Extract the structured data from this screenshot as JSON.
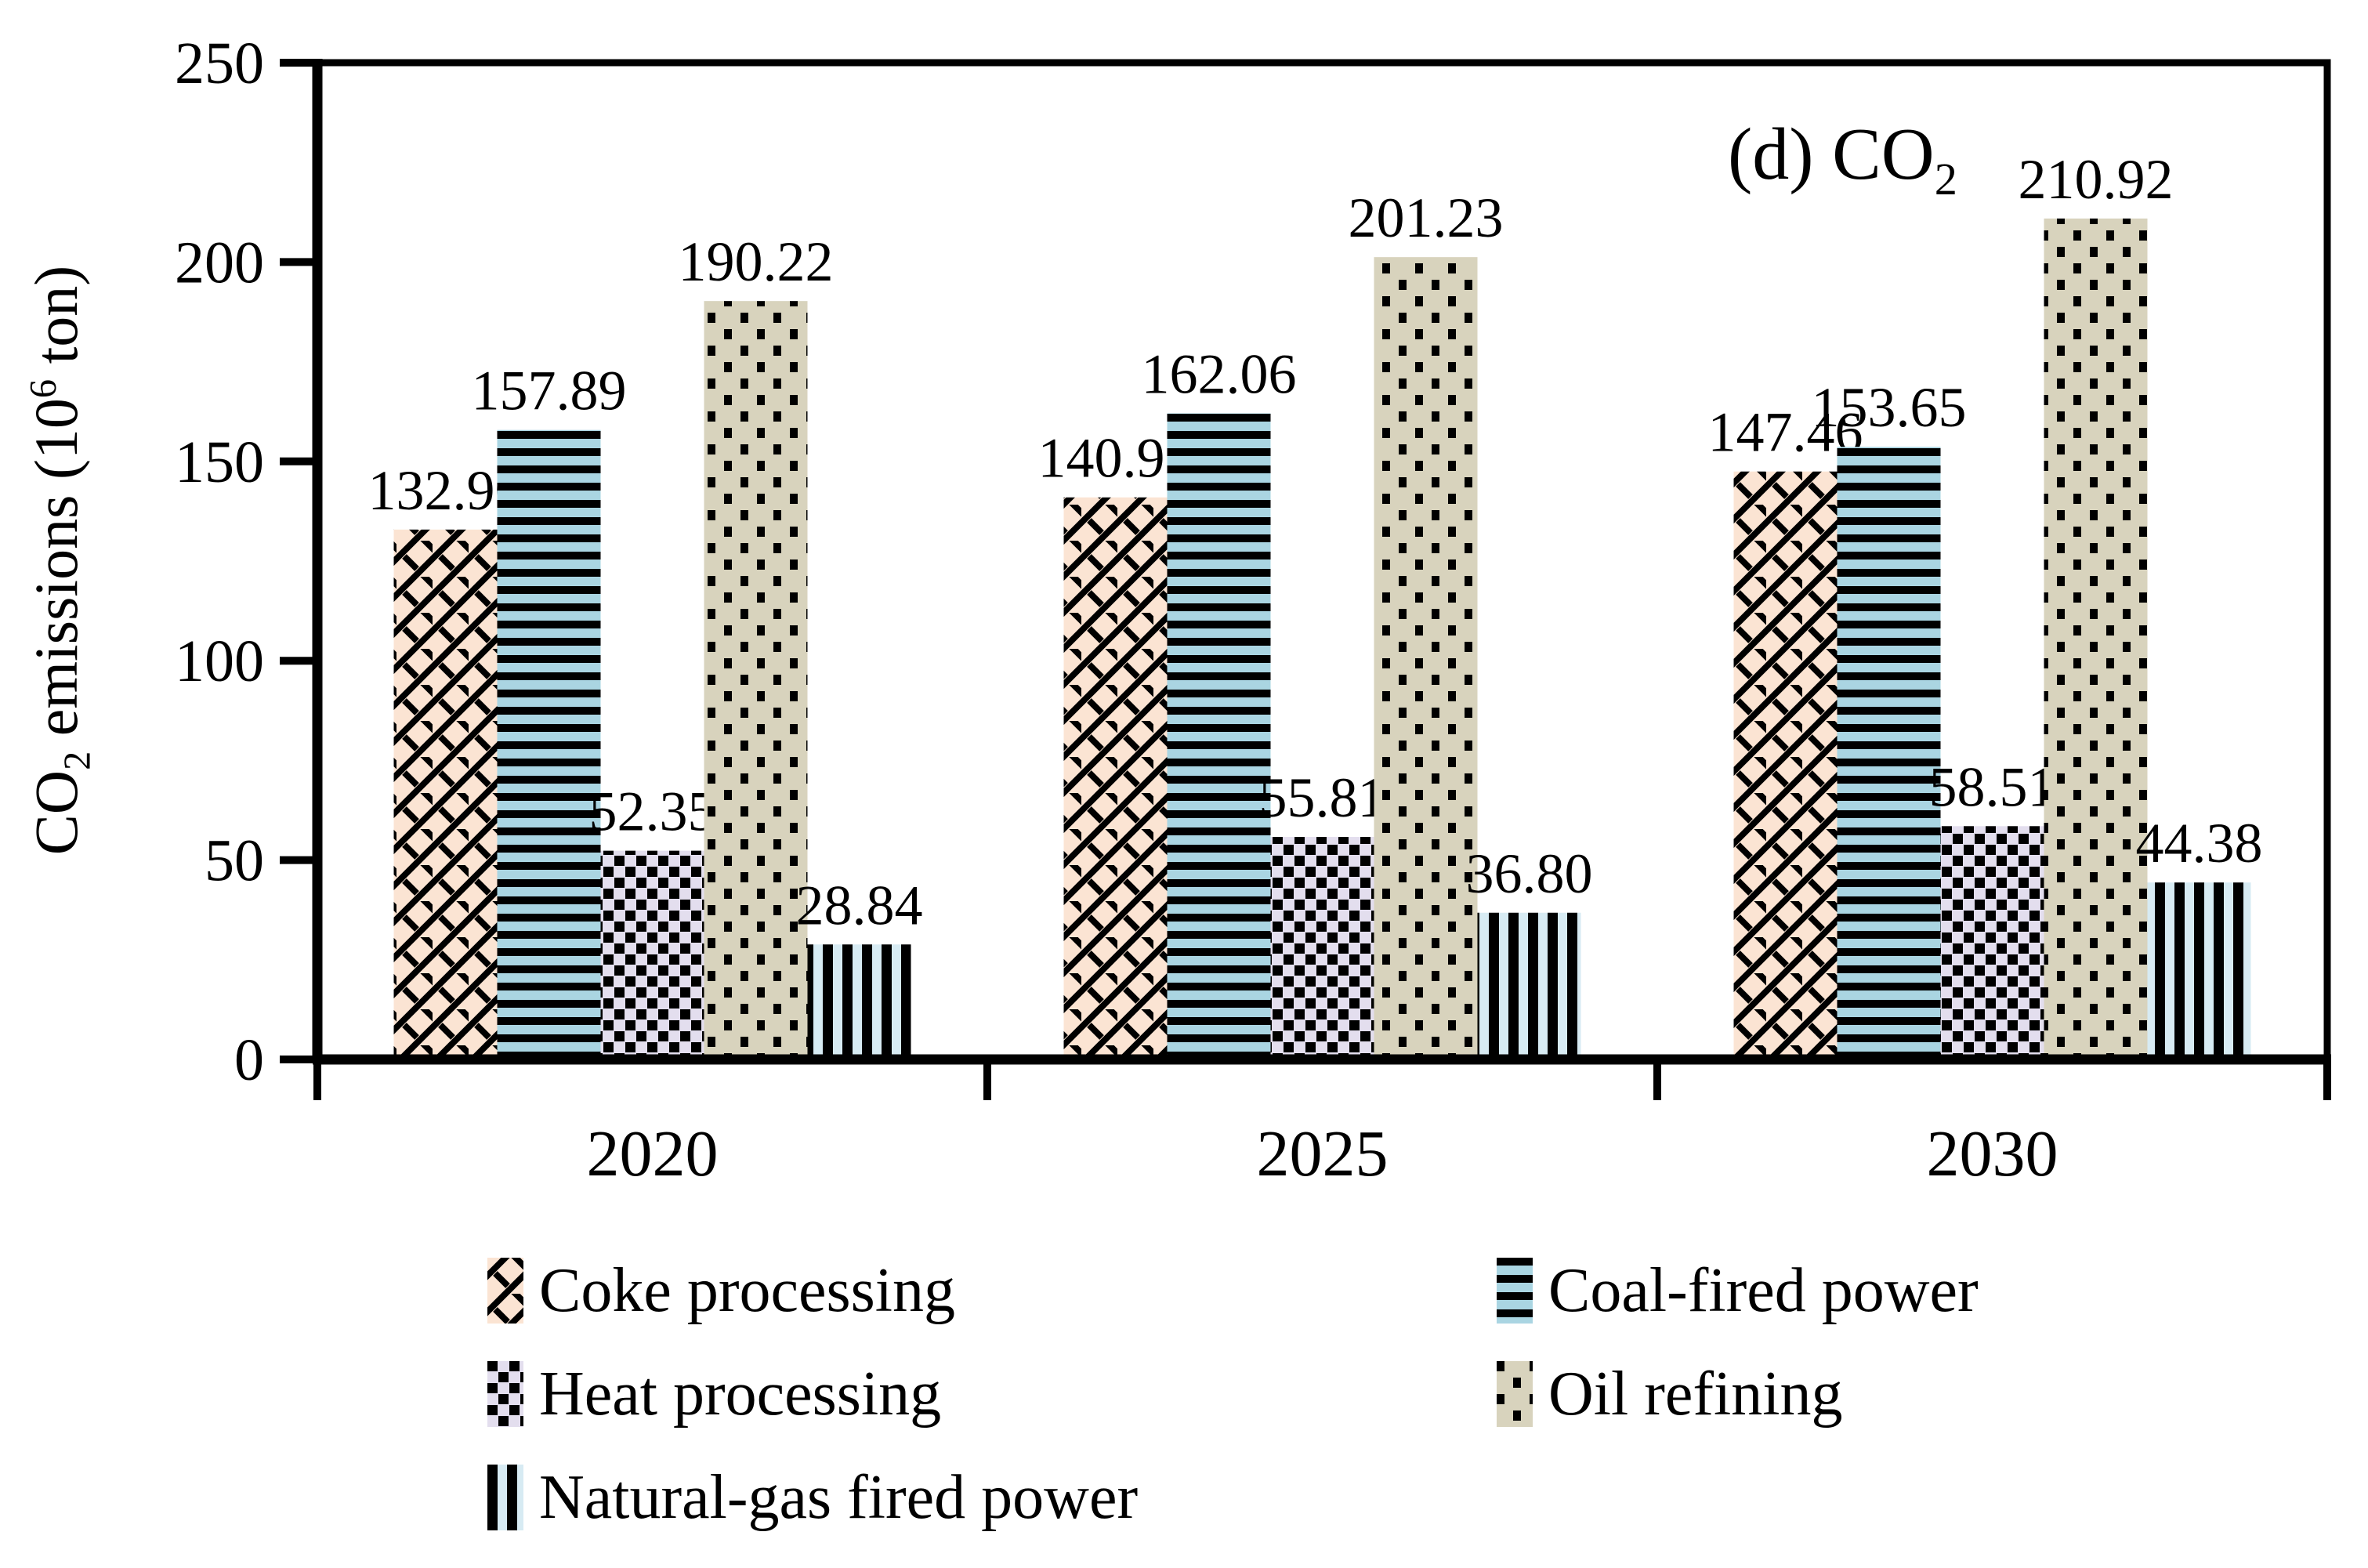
{
  "title": {
    "prefix": "(d) CO",
    "sub": "2"
  },
  "y_axis_title": {
    "pre": "CO",
    "sub": "2",
    "mid": " emissions (10",
    "sup": "6",
    "post": " ton)"
  },
  "chart_data": {
    "type": "bar",
    "title": "(d) CO2",
    "ylabel": "CO2 emissions (10^6 ton)",
    "xlabel": "",
    "categories": [
      "2020",
      "2025",
      "2030"
    ],
    "series": [
      {
        "name": "Coke processing",
        "pattern": "shingle",
        "fill": "#fbe4d3",
        "values": [
          132.9,
          140.97,
          147.46
        ]
      },
      {
        "name": "Coal-fired power",
        "pattern": "hstripe",
        "fill": "#aad5e2",
        "values": [
          157.89,
          162.06,
          153.65
        ]
      },
      {
        "name": "Heat processing",
        "pattern": "checker",
        "fill": "#e3deee",
        "values": [
          52.35,
          55.81,
          58.51
        ]
      },
      {
        "name": "Oil refining",
        "pattern": "dots",
        "fill": "#d8d3bd",
        "values": [
          190.22,
          201.23,
          210.92
        ]
      },
      {
        "name": "Natural-gas fired power",
        "pattern": "vstripe",
        "fill": "#d7ebf3",
        "values": [
          28.84,
          36.8,
          44.38
        ]
      }
    ],
    "ylim": [
      0,
      250
    ],
    "yticks": [
      0,
      50,
      100,
      150,
      200,
      250
    ],
    "pattern_color": "#000000",
    "grid": false,
    "data_labels": true,
    "decimals": 2,
    "legend_position": "bottom"
  },
  "legend": {
    "columns": [
      [
        0,
        2,
        4
      ],
      [
        1,
        3
      ]
    ]
  }
}
